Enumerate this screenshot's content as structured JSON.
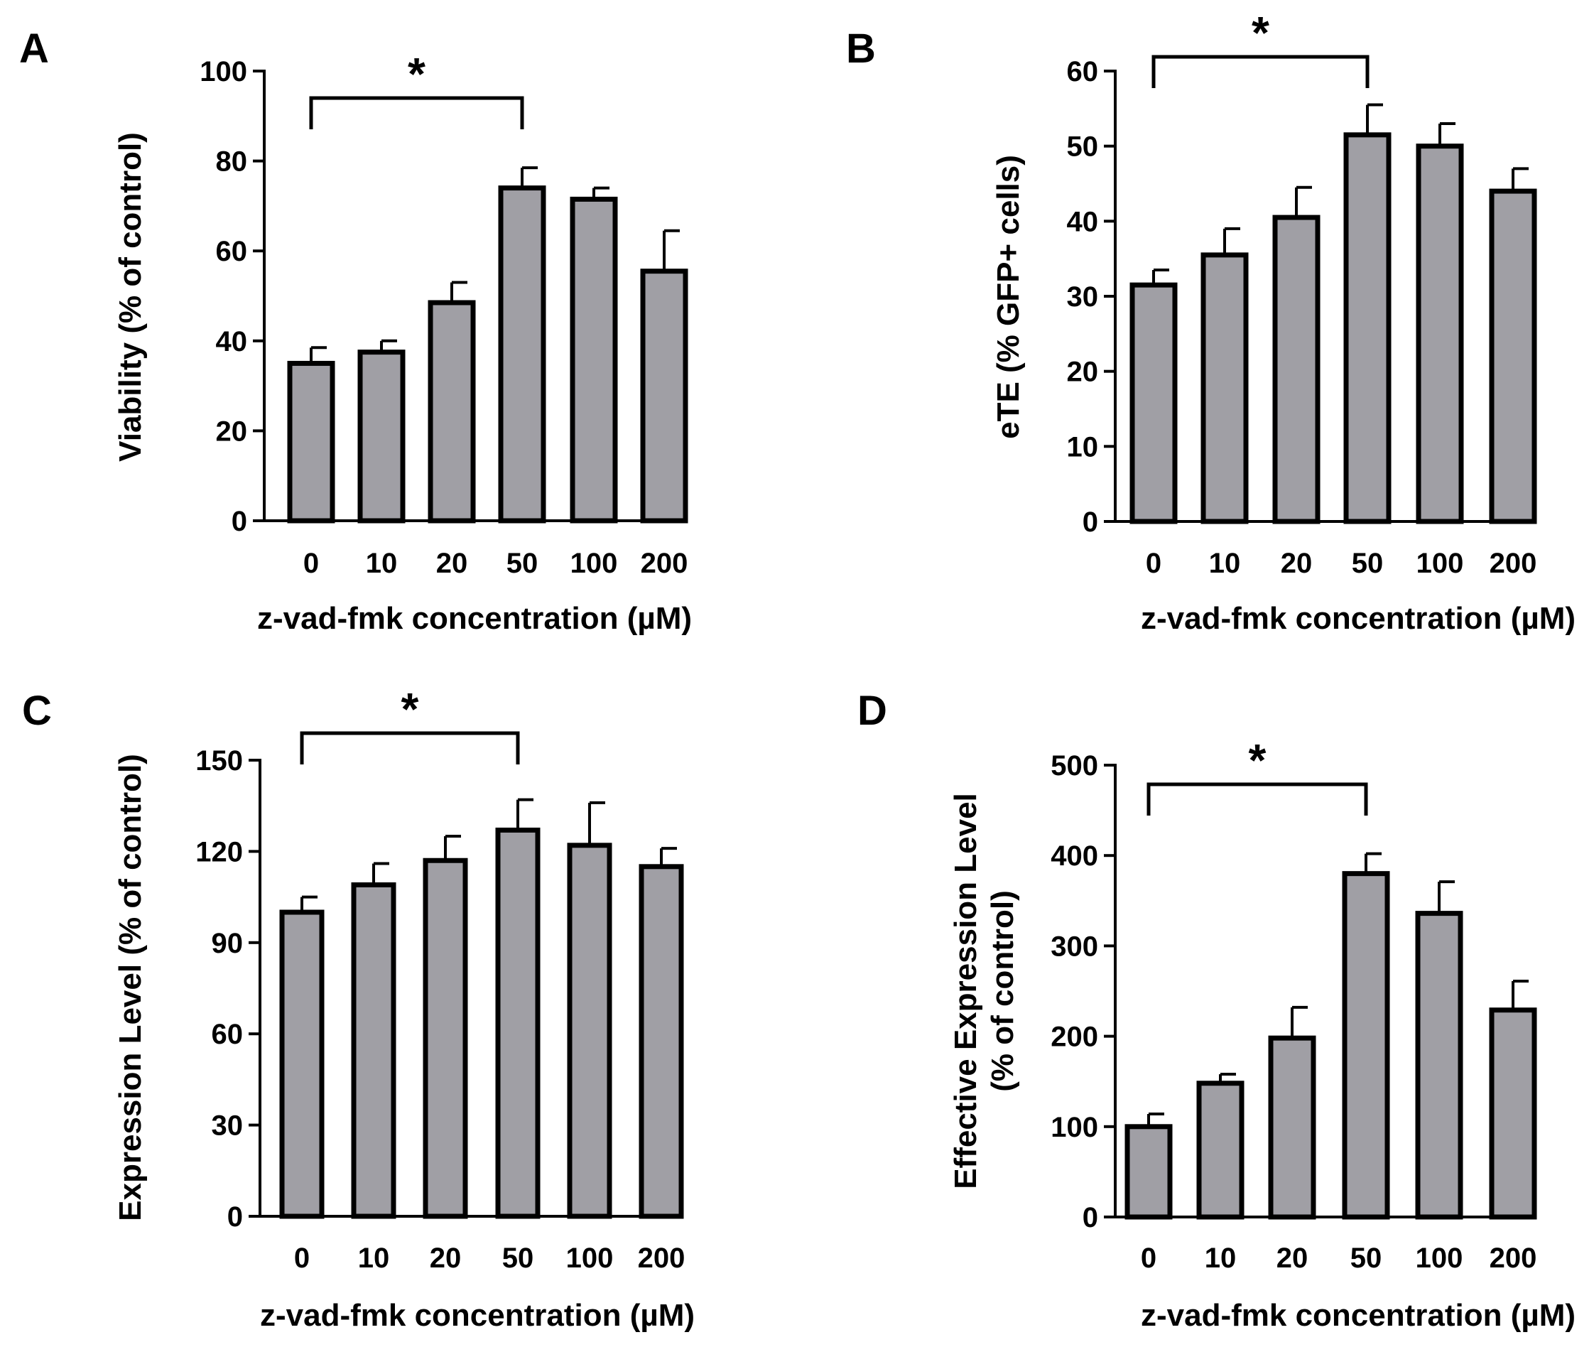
{
  "colors": {
    "bar_fill": "#a09fa5",
    "stroke": "#000000",
    "background": "#ffffff"
  },
  "chart_data": [
    {
      "panel": "A",
      "type": "bar",
      "categories": [
        "0",
        "10",
        "20",
        "50",
        "100",
        "200"
      ],
      "values": [
        35,
        37.5,
        48.5,
        74,
        71.5,
        55.5
      ],
      "errors": [
        3.5,
        2.5,
        4.5,
        4.5,
        2.5,
        9
      ],
      "xlabel": "z-vad-fmk concentration (µM)",
      "ylabel": "Viability (% of control)",
      "ylim": [
        0,
        100
      ],
      "yticks": [
        "0",
        "20",
        "40",
        "60",
        "80",
        "100"
      ],
      "significance": {
        "from": "0",
        "to": "50",
        "label": "*"
      }
    },
    {
      "panel": "B",
      "type": "bar",
      "categories": [
        "0",
        "10",
        "20",
        "50",
        "100",
        "200"
      ],
      "values": [
        31.5,
        35.5,
        40.5,
        51.5,
        50,
        44
      ],
      "errors": [
        2,
        3.5,
        4,
        4,
        3,
        3
      ],
      "xlabel": "z-vad-fmk concentration (µM)",
      "ylabel": "eTE (% GFP+ cells)",
      "ylim": [
        0,
        60
      ],
      "yticks": [
        "0",
        "10",
        "20",
        "30",
        "40",
        "50",
        "60"
      ],
      "significance": {
        "from": "0",
        "to": "50",
        "label": "*"
      }
    },
    {
      "panel": "C",
      "type": "bar",
      "categories": [
        "0",
        "10",
        "20",
        "50",
        "100",
        "200"
      ],
      "values": [
        100,
        109,
        117,
        127,
        122,
        115
      ],
      "errors": [
        5,
        7,
        8,
        10,
        14,
        6
      ],
      "xlabel": "z-vad-fmk concentration (µM)",
      "ylabel": "Expression Level (% of control)",
      "ylim": [
        0,
        150
      ],
      "yticks": [
        "0",
        "30",
        "60",
        "90",
        "120",
        "150"
      ],
      "significance": {
        "from": "0",
        "to": "50",
        "label": "*"
      }
    },
    {
      "panel": "D",
      "type": "bar",
      "categories": [
        "0",
        "10",
        "20",
        "50",
        "100",
        "200"
      ],
      "values": [
        100,
        148,
        198,
        380,
        336,
        229
      ],
      "errors": [
        14,
        10,
        34,
        22,
        35,
        32
      ],
      "xlabel": "z-vad-fmk concentration (µM)",
      "ylabel": [
        "Effective Expression Level",
        "(% of control)"
      ],
      "ylim": [
        0,
        500
      ],
      "yticks": [
        "0",
        "100",
        "200",
        "300",
        "400",
        "500"
      ],
      "significance": {
        "from": "0",
        "to": "50",
        "label": "*"
      }
    }
  ]
}
